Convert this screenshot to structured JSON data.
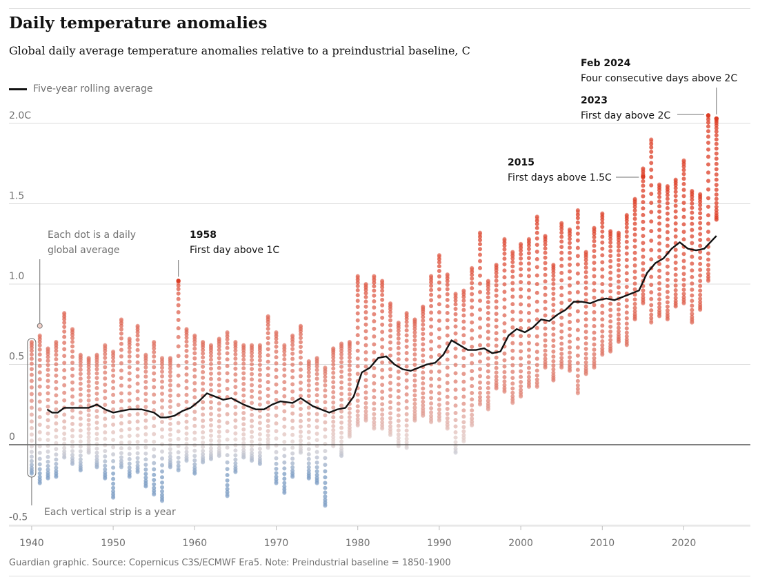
{
  "header": {
    "title": "Daily temperature anomalies",
    "subtitle": "Global daily average temperature anomalies relative to a preindustrial baseline, C"
  },
  "legend": {
    "line_label": "Five-year rolling average"
  },
  "footer": {
    "source": "Guardian graphic. Source: Copernicus C3S/ECMWF Era5. Note: Preindustrial baseline = 1850-1900"
  },
  "colors": {
    "warm": "#dc3d25",
    "cool": "#7b9cc3",
    "neutral": "#e2d6d4",
    "line": "#121212",
    "grid": "#dcdcdc"
  },
  "chart_data": {
    "type": "scatter",
    "title": "Daily temperature anomalies",
    "xlabel": "",
    "ylabel": "",
    "xlim": [
      1939,
      2025
    ],
    "ylim": [
      -0.5,
      2.0
    ],
    "x_ticks": [
      1940,
      1950,
      1960,
      1970,
      1980,
      1990,
      2000,
      2010,
      2020
    ],
    "y_ticks": [
      {
        "value": -0.5,
        "label": "-0.5"
      },
      {
        "value": 0,
        "label": "0"
      },
      {
        "value": 0.5,
        "label": "0.5"
      },
      {
        "value": 1.0,
        "label": "1.0"
      },
      {
        "value": 1.5,
        "label": "1.5"
      },
      {
        "value": 2.0,
        "label": "2.0C"
      }
    ],
    "years": [
      1940,
      1941,
      1942,
      1943,
      1944,
      1945,
      1946,
      1947,
      1948,
      1949,
      1950,
      1951,
      1952,
      1953,
      1954,
      1955,
      1956,
      1957,
      1958,
      1959,
      1960,
      1961,
      1962,
      1963,
      1964,
      1965,
      1966,
      1967,
      1968,
      1969,
      1970,
      1971,
      1972,
      1973,
      1974,
      1975,
      1976,
      1977,
      1978,
      1979,
      1980,
      1981,
      1982,
      1983,
      1984,
      1985,
      1986,
      1987,
      1988,
      1989,
      1990,
      1991,
      1992,
      1993,
      1994,
      1995,
      1996,
      1997,
      1998,
      1999,
      2000,
      2001,
      2002,
      2003,
      2004,
      2005,
      2006,
      2007,
      2008,
      2009,
      2010,
      2011,
      2012,
      2013,
      2014,
      2015,
      2016,
      2017,
      2018,
      2019,
      2020,
      2021,
      2022,
      2023,
      2024
    ],
    "daily_min": [
      -0.18,
      -0.24,
      -0.21,
      -0.2,
      -0.08,
      -0.12,
      -0.16,
      -0.05,
      -0.14,
      -0.21,
      -0.33,
      -0.14,
      -0.2,
      -0.17,
      -0.26,
      -0.31,
      -0.35,
      -0.14,
      -0.16,
      -0.1,
      -0.18,
      -0.11,
      -0.09,
      -0.07,
      -0.32,
      -0.17,
      -0.08,
      -0.1,
      -0.12,
      -0.02,
      -0.24,
      -0.3,
      -0.2,
      -0.05,
      -0.21,
      -0.24,
      -0.38,
      -0.01,
      -0.07,
      0.05,
      0.12,
      0.15,
      0.1,
      0.1,
      0.06,
      -0.01,
      -0.02,
      0.15,
      0.18,
      0.14,
      0.15,
      0.1,
      -0.05,
      0.02,
      0.12,
      0.25,
      0.22,
      0.35,
      0.33,
      0.26,
      0.3,
      0.36,
      0.36,
      0.48,
      0.4,
      0.48,
      0.46,
      0.32,
      0.44,
      0.48,
      0.56,
      0.58,
      0.64,
      0.62,
      0.78,
      0.88,
      0.76,
      0.8,
      0.78,
      0.86,
      0.88,
      0.76,
      0.84,
      1.02,
      1.4
    ],
    "daily_max": [
      0.64,
      0.68,
      0.6,
      0.64,
      0.82,
      0.72,
      0.56,
      0.54,
      0.56,
      0.62,
      0.58,
      0.78,
      0.66,
      0.74,
      0.56,
      0.64,
      0.54,
      0.54,
      1.02,
      0.72,
      0.68,
      0.64,
      0.62,
      0.66,
      0.7,
      0.64,
      0.62,
      0.62,
      0.62,
      0.8,
      0.7,
      0.62,
      0.68,
      0.74,
      0.52,
      0.54,
      0.48,
      0.6,
      0.63,
      0.64,
      1.05,
      1.0,
      1.05,
      1.02,
      0.88,
      0.76,
      0.82,
      0.78,
      0.86,
      1.05,
      1.18,
      1.06,
      0.94,
      0.96,
      1.1,
      1.32,
      1.02,
      1.12,
      1.28,
      1.2,
      1.25,
      1.28,
      1.42,
      1.3,
      1.12,
      1.38,
      1.34,
      1.46,
      1.2,
      1.35,
      1.44,
      1.33,
      1.32,
      1.43,
      1.53,
      1.72,
      1.9,
      1.62,
      1.61,
      1.65,
      1.77,
      1.58,
      1.56,
      2.05,
      2.03
    ],
    "rolling_average": {
      "name": "Five-year rolling average",
      "x": [
        1942.4,
        1943,
        1943.7,
        1944.5,
        1946,
        1947.5,
        1948.5,
        1949.5,
        1950.5,
        1951.5,
        1952.5,
        1954,
        1955.5,
        1956.3,
        1957,
        1958,
        1959,
        1960,
        1961,
        1962,
        1963,
        1964,
        1965,
        1966.5,
        1968,
        1969,
        1970,
        1971,
        1972.5,
        1973.5,
        1975,
        1976,
        1977,
        1978,
        1979,
        1980,
        1981,
        1982,
        1983,
        1984,
        1985,
        1986,
        1987,
        1988,
        1989,
        1990,
        1991,
        1992,
        1993,
        1994,
        1995,
        1996,
        1997,
        1998,
        1999,
        2000,
        2001,
        2002,
        2003,
        2004,
        2005,
        2006,
        2007,
        2008,
        2009,
        2010,
        2011,
        2012,
        2013,
        2014,
        2015,
        2016,
        2017,
        2018,
        2019,
        2020,
        2021,
        2022,
        2023,
        2024.5
      ],
      "y": [
        0.22,
        0.2,
        0.2,
        0.23,
        0.23,
        0.23,
        0.25,
        0.22,
        0.2,
        0.21,
        0.22,
        0.22,
        0.2,
        0.17,
        0.17,
        0.18,
        0.21,
        0.23,
        0.27,
        0.32,
        0.3,
        0.28,
        0.29,
        0.25,
        0.22,
        0.22,
        0.25,
        0.27,
        0.26,
        0.29,
        0.24,
        0.22,
        0.2,
        0.22,
        0.23,
        0.3,
        0.45,
        0.48,
        0.54,
        0.55,
        0.5,
        0.47,
        0.46,
        0.48,
        0.5,
        0.51,
        0.56,
        0.65,
        0.62,
        0.59,
        0.59,
        0.6,
        0.57,
        0.58,
        0.68,
        0.72,
        0.7,
        0.73,
        0.78,
        0.77,
        0.81,
        0.84,
        0.89,
        0.89,
        0.88,
        0.9,
        0.91,
        0.9,
        0.92,
        0.94,
        0.96,
        1.07,
        1.13,
        1.16,
        1.22,
        1.26,
        1.22,
        1.21,
        1.22,
        1.3
      ]
    },
    "annotations": [
      {
        "id": "ann-1958",
        "heading": "1958",
        "text": "First day above 1C",
        "year": 1958,
        "value": 1.02
      },
      {
        "id": "ann-2015",
        "heading": "2015",
        "text": "First days above 1.5C",
        "year": 2015,
        "value": 1.67
      },
      {
        "id": "ann-2023",
        "heading": "2023",
        "text": "First day above 2C",
        "year": 2023,
        "value": 2.05
      },
      {
        "id": "ann-2024",
        "heading": "Feb 2024",
        "text": "Four consecutive days above 2C",
        "year": 2024,
        "value": 2.03
      }
    ],
    "explainers": {
      "dot": [
        "Each dot is a daily",
        "global average"
      ],
      "strip": "Each vertical strip is a year"
    }
  }
}
